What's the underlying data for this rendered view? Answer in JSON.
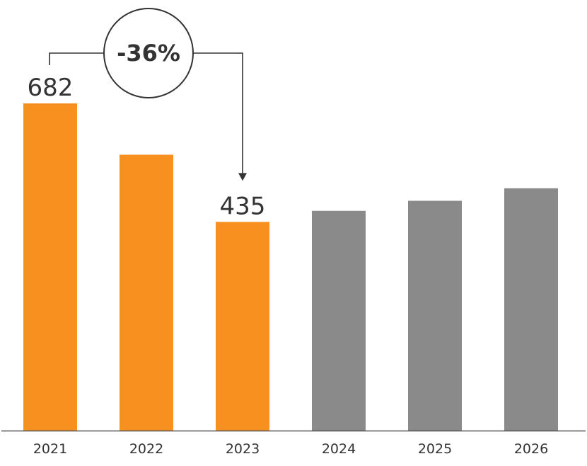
{
  "chart_data": {
    "type": "bar",
    "categories": [
      "2021",
      "2022",
      "2023",
      "2024",
      "2025",
      "2026"
    ],
    "values": [
      682,
      575,
      435,
      458,
      479,
      505
    ],
    "data_labels": [
      "682",
      "",
      "435",
      "",
      "",
      ""
    ],
    "ylim": [
      0,
      700
    ],
    "grid": false,
    "legend": "none",
    "colors": {
      "actual": "#F7901E",
      "forecast": "#8A8A8A",
      "axis": "#555555",
      "annotation": "#333333"
    },
    "bar_colors": [
      "actual",
      "actual",
      "actual",
      "forecast",
      "forecast",
      "forecast"
    ],
    "annotations": [
      {
        "text": "-36%",
        "from_category": "2021",
        "to_category": "2023",
        "style": "circled-arrow"
      }
    ]
  }
}
